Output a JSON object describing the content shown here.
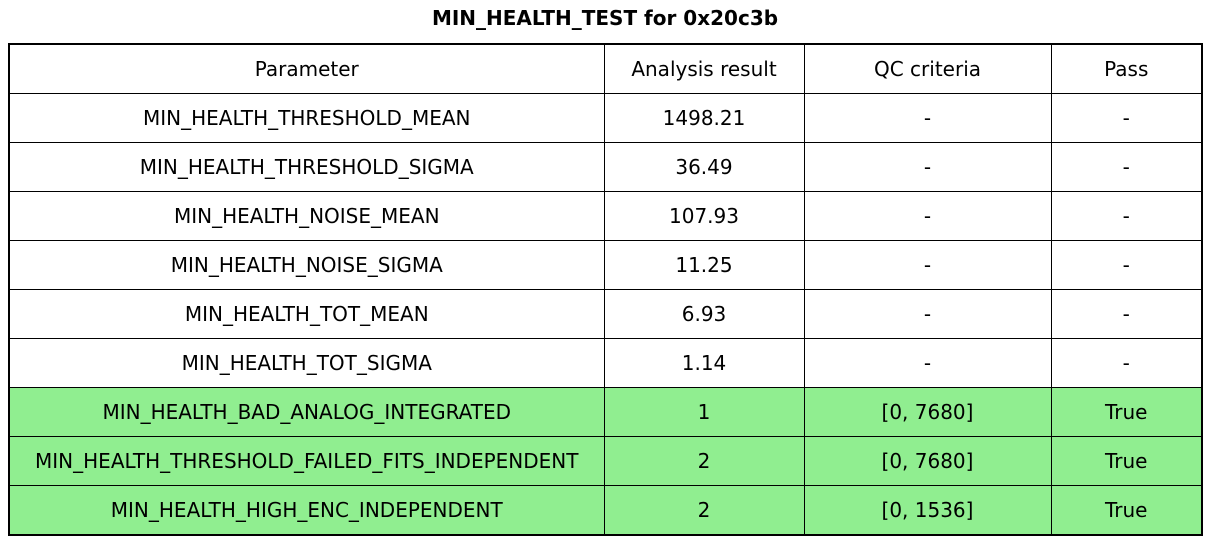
{
  "figure": {
    "title": "MIN_HEALTH_TEST for 0x20c3b"
  },
  "chart_data": {
    "type": "table",
    "title": "MIN_HEALTH_TEST for 0x20c3b",
    "columns": [
      "Parameter",
      "Analysis result",
      "QC criteria",
      "Pass"
    ],
    "rows": [
      [
        "MIN_HEALTH_THRESHOLD_MEAN",
        "1498.21",
        "-",
        "-"
      ],
      [
        "MIN_HEALTH_THRESHOLD_SIGMA",
        "36.49",
        "-",
        "-"
      ],
      [
        "MIN_HEALTH_NOISE_MEAN",
        "107.93",
        "-",
        "-"
      ],
      [
        "MIN_HEALTH_NOISE_SIGMA",
        "11.25",
        "-",
        "-"
      ],
      [
        "MIN_HEALTH_TOT_MEAN",
        "6.93",
        "-",
        "-"
      ],
      [
        "MIN_HEALTH_TOT_SIGMA",
        "1.14",
        "-",
        "-"
      ],
      [
        "MIN_HEALTH_BAD_ANALOG_INTEGRATED",
        "1",
        "[0, 7680]",
        "True"
      ],
      [
        "MIN_HEALTH_THRESHOLD_FAILED_FITS_INDEPENDENT",
        "2",
        "[0, 7680]",
        "True"
      ],
      [
        "MIN_HEALTH_HIGH_ENC_INDEPENDENT",
        "2",
        "[0, 1536]",
        "True"
      ]
    ],
    "highlighted_rows": [
      6,
      7,
      8
    ],
    "layout": {
      "grid": "all-borders",
      "header_row": true,
      "cell_text_align": "center"
    }
  },
  "colors": {
    "highlight_green": "#90ee90",
    "border": "#000000",
    "text": "#000000",
    "background": "#ffffff"
  }
}
